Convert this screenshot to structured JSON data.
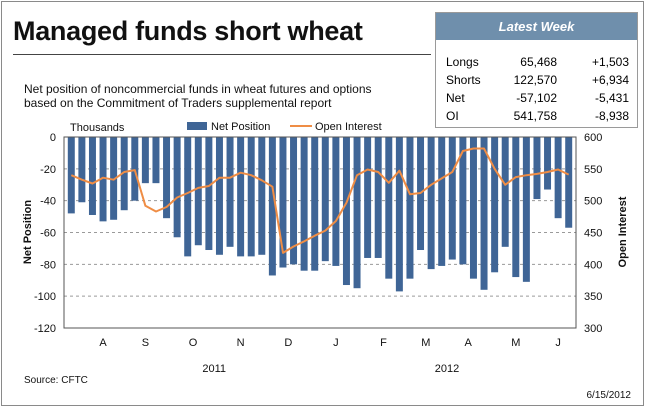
{
  "title": "Managed funds short wheat",
  "subtitle_lines": [
    "Net position of noncommercial funds in wheat futures and options",
    "based on the Commitment of Traders supplemental report"
  ],
  "latest_week": {
    "header": "Latest Week",
    "rows": [
      {
        "label": "Longs",
        "value": "65,468",
        "change": "+1,503"
      },
      {
        "label": "Shorts",
        "value": "122,570",
        "change": "+6,934"
      },
      {
        "label": "Net",
        "value": "-57,102",
        "change": "-5,431"
      },
      {
        "label": "OI",
        "value": "541,758",
        "change": "-8,938"
      }
    ]
  },
  "source": "Source: CFTC",
  "date": "6/15/2012",
  "colors": {
    "bar": "#3f6596",
    "line": "#ef8d45",
    "grid": "#9a9a9a",
    "panel_header": "#6f8fac"
  },
  "chart_data": {
    "type": "bar",
    "units_label": "Thousands",
    "ylabel_left": "Net Position",
    "ylabel_right": "Open Interest",
    "ylim_left": [
      -120,
      0
    ],
    "yticks_left": [
      "0",
      "-20",
      "-40",
      "-60",
      "-80",
      "-100",
      "-120"
    ],
    "ylim_right": [
      300,
      600
    ],
    "yticks_right": [
      "600",
      "550",
      "500",
      "450",
      "400",
      "350",
      "300"
    ],
    "grid": true,
    "legend": {
      "placement": "top",
      "entries": [
        "Net Position",
        "Open Interest"
      ]
    },
    "x_month_labels": [
      "A",
      "S",
      "O",
      "N",
      "D",
      "J",
      "F",
      "M",
      "A",
      "M",
      "J"
    ],
    "x_month_positions": [
      3,
      7,
      11.5,
      16,
      20.5,
      25,
      29.5,
      33.5,
      37.5,
      42,
      46
    ],
    "x_year_labels": [
      {
        "label": "2011",
        "position": 13.5
      },
      {
        "label": "2012",
        "position": 35.5
      }
    ],
    "series": [
      {
        "name": "Net Position",
        "type": "bar",
        "axis": "left",
        "values": [
          -48,
          -41,
          -49,
          -53,
          -52,
          -46,
          -40,
          -29,
          -29,
          -51,
          -63,
          -75,
          -68,
          -71,
          -74,
          -69,
          -75,
          -75,
          -74,
          -87,
          -82,
          -80,
          -84,
          -84,
          -78,
          -81,
          -93,
          -95,
          -76,
          -76,
          -89,
          -97,
          -89,
          -71,
          -83,
          -81,
          -77,
          -80,
          -89,
          -96,
          -85,
          -69,
          -88,
          -91,
          -39,
          -33,
          -51,
          -57
        ]
      },
      {
        "name": "Open Interest",
        "type": "line",
        "axis": "right",
        "values": [
          540,
          533,
          527,
          536,
          533,
          545,
          548,
          492,
          483,
          490,
          505,
          512,
          520,
          523,
          536,
          536,
          544,
          540,
          532,
          522,
          418,
          428,
          436,
          445,
          453,
          468,
          497,
          540,
          549,
          545,
          528,
          547,
          510,
          512,
          525,
          535,
          545,
          578,
          582,
          582,
          550,
          525,
          537,
          540,
          542,
          545,
          549,
          541
        ]
      }
    ]
  }
}
